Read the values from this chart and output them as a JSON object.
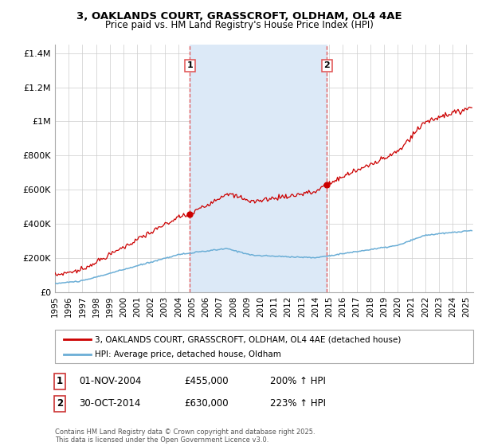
{
  "title_line1": "3, OAKLANDS COURT, GRASSCROFT, OLDHAM, OL4 4AE",
  "title_line2": "Price paid vs. HM Land Registry's House Price Index (HPI)",
  "ylim": [
    0,
    1450000
  ],
  "xlim_start": 1995.0,
  "xlim_end": 2025.5,
  "yticks": [
    0,
    200000,
    400000,
    600000,
    800000,
    1000000,
    1200000,
    1400000
  ],
  "ytick_labels": [
    "£0",
    "£200K",
    "£400K",
    "£600K",
    "£800K",
    "£1M",
    "£1.2M",
    "£1.4M"
  ],
  "xticks": [
    1995,
    1996,
    1997,
    1998,
    1999,
    2000,
    2001,
    2002,
    2003,
    2004,
    2005,
    2006,
    2007,
    2008,
    2009,
    2010,
    2011,
    2012,
    2013,
    2014,
    2015,
    2016,
    2017,
    2018,
    2019,
    2020,
    2021,
    2022,
    2023,
    2024,
    2025
  ],
  "purchase1_x": 2004.84,
  "purchase1_y": 455000,
  "purchase1_label": "1",
  "purchase1_date": "01-NOV-2004",
  "purchase1_price": "£455,000",
  "purchase1_hpi": "200% ↑ HPI",
  "purchase2_x": 2014.83,
  "purchase2_y": 630000,
  "purchase2_label": "2",
  "purchase2_date": "30-OCT-2014",
  "purchase2_price": "£630,000",
  "purchase2_hpi": "223% ↑ HPI",
  "shaded_region_color": "#dce9f7",
  "vline_color": "#e05050",
  "house_line_color": "#cc0000",
  "hpi_line_color": "#6baed6",
  "legend_label1": "3, OAKLANDS COURT, GRASSCROFT, OLDHAM, OL4 4AE (detached house)",
  "legend_label2": "HPI: Average price, detached house, Oldham",
  "footnote": "Contains HM Land Registry data © Crown copyright and database right 2025.\nThis data is licensed under the Open Government Licence v3.0.",
  "background_color": "#ffffff",
  "grid_color": "#cccccc"
}
